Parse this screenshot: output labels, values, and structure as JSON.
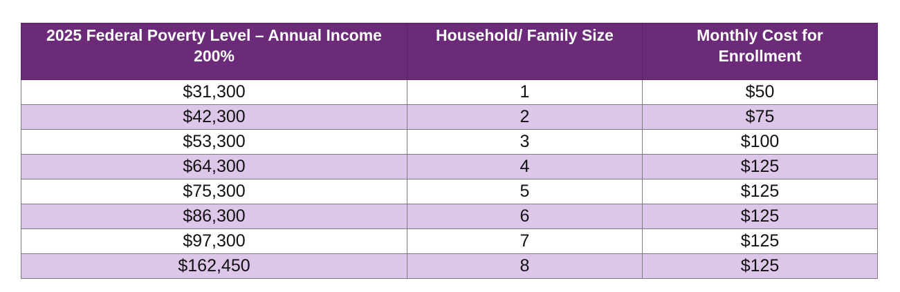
{
  "table": {
    "header": [
      "2025 Federal Poverty Level – Annual Income 200%",
      "Household/ Family Size",
      "Monthly Cost for Enrollment"
    ],
    "rows": [
      [
        "$31,300",
        "1",
        "$50"
      ],
      [
        "$42,300",
        "2",
        "$75"
      ],
      [
        "$53,300",
        "3",
        "$100"
      ],
      [
        "$64,300",
        "4",
        "$125"
      ],
      [
        "$75,300",
        "5",
        "$125"
      ],
      [
        "$86,300",
        "6",
        "$125"
      ],
      [
        "$97,300",
        "7",
        "$125"
      ],
      [
        "$162,450",
        "8",
        "$125"
      ]
    ]
  }
}
